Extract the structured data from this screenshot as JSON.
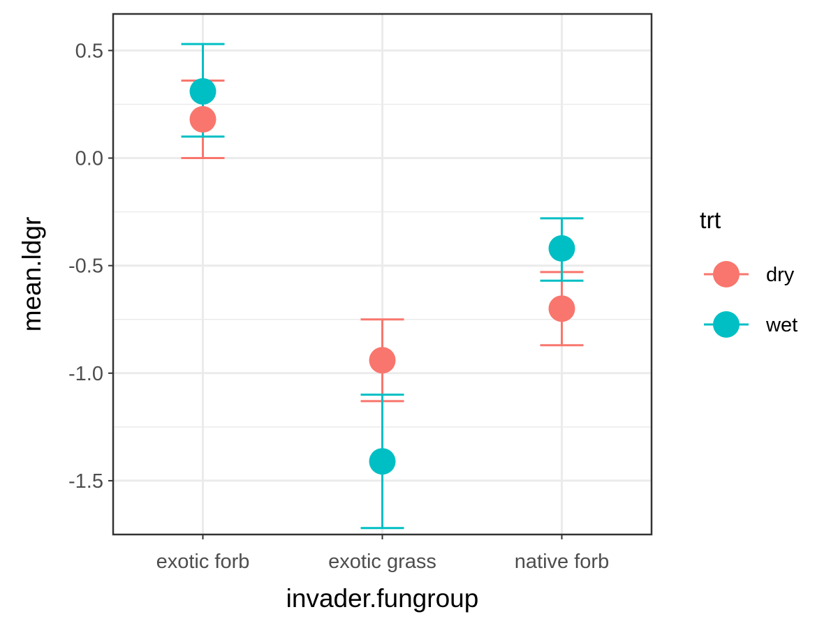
{
  "chart_data": {
    "type": "scatter",
    "title": "",
    "xlabel": "invader.fungroup",
    "ylabel": "mean.ldgr",
    "categories": [
      "exotic forb",
      "exotic grass",
      "native forb"
    ],
    "ylim": [
      -1.75,
      0.67
    ],
    "yticks": [
      0.5,
      0.0,
      -0.5,
      -1.0,
      -1.5
    ],
    "ytick_labels": [
      "0.5",
      "0.0",
      "-0.5",
      "-1.0",
      "-1.5"
    ],
    "grid": true,
    "legend": {
      "title": "trt",
      "position": "right"
    },
    "series": [
      {
        "name": "dry",
        "color": "#F8766D",
        "values": [
          0.18,
          -0.94,
          -0.7
        ],
        "lower": [
          0.0,
          -1.13,
          -0.87
        ],
        "upper": [
          0.36,
          -0.75,
          -0.53
        ]
      },
      {
        "name": "wet",
        "color": "#00BFC4",
        "values": [
          0.31,
          -1.41,
          -0.42
        ],
        "lower": [
          0.1,
          -1.72,
          -0.57
        ],
        "upper": [
          0.53,
          -1.1,
          -0.28
        ]
      }
    ]
  }
}
